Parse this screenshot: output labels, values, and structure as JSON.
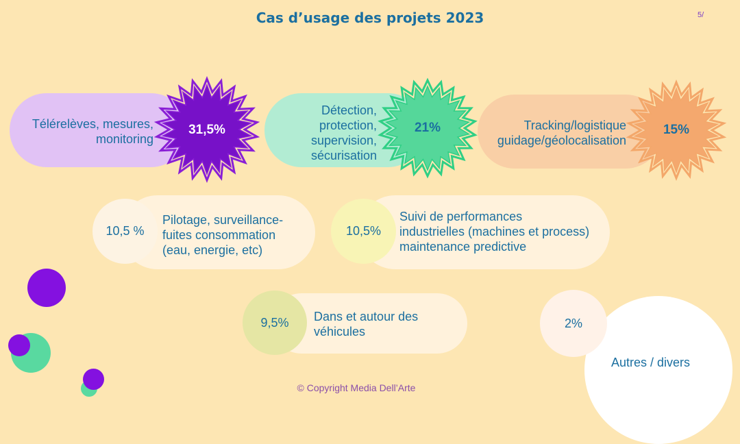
{
  "title": "Cas d’usage des projets 2023",
  "page_number": "5/",
  "copyright": "© Copyright Media Dell’Arte",
  "chart_data": {
    "type": "table",
    "categories": [
      "Télérelèves, mesures, monitoring",
      "Détection, protection, supervision, sécurisation",
      "Tracking/logistique guidage/géolocalisation",
      "Pilotage, surveillance- fuites consommation (eau, energie, etc)",
      "Suivi de performances industrielles (machines et process) maintenance predictive",
      "Dans et autour des véhicules",
      "Autres / divers"
    ],
    "values": [
      31.5,
      21,
      15,
      10.5,
      10.5,
      9.5,
      2
    ],
    "items": [
      {
        "label_lines": [
          "Télérelèves, mesures,",
          "monitoring"
        ],
        "value_label": "31,5%",
        "value": 31.5,
        "color": "#e1c2f5",
        "star_color": "#8a1fd6",
        "star_fill": "#7711c8",
        "text_color": "#ffffff"
      },
      {
        "label_lines": [
          "Détection,",
          "protection,",
          "supervision,",
          "sécurisation"
        ],
        "value_label": "21%",
        "value": 21,
        "color": "#b2ecd3",
        "star_color": "#2fcf85",
        "star_fill": "#55d79a",
        "text_color": "#1b6fa0"
      },
      {
        "label_lines": [
          "Tracking/logistique",
          "guidage/géolocalisation"
        ],
        "value_label": "15%",
        "value": 15,
        "color": "#f9cfa6",
        "star_color": "#f3a76a",
        "star_fill": "#f4a86e",
        "text_color": "#1b6fa0"
      },
      {
        "label_lines": [
          "Pilotage, surveillance-",
          "fuites consommation",
          "(eau, energie, etc)"
        ],
        "value_label": "10,5 %",
        "value": 10.5,
        "color": "#fff2dc",
        "circle_color": "#fdf3e3"
      },
      {
        "label_lines": [
          "Suivi de performances",
          "industrielles (machines et process)",
          "maintenance predictive"
        ],
        "value_label": "10,5%",
        "value": 10.5,
        "color": "#fff2dc",
        "circle_color": "#f8f4b5"
      },
      {
        "label_lines": [
          "Dans et autour des",
          "véhicules"
        ],
        "value_label": "9,5%",
        "value": 9.5,
        "color": "#fff2dc",
        "circle_color": "#e5e6a4"
      },
      {
        "label_lines": [
          "Autres / divers"
        ],
        "value_label": "2%",
        "value": 2,
        "color": "#ffffff",
        "circle_color": "#fff2e8"
      }
    ]
  },
  "decor": {
    "circle_purple": "#8411e0",
    "circle_green": "#59d9a0"
  }
}
